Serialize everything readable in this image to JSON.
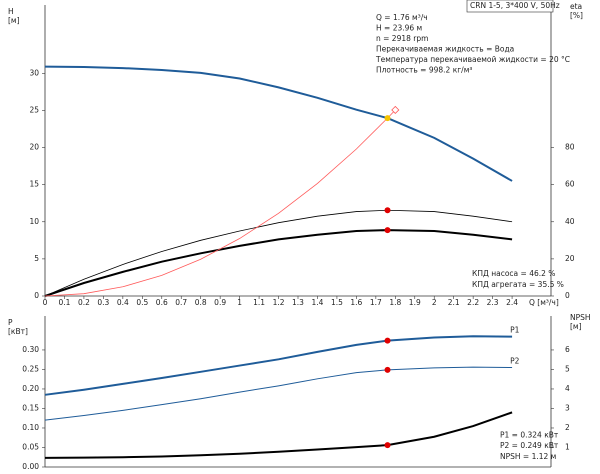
{
  "chart_data": [
    {
      "type": "line",
      "title": "CRN 1-5, 3*400 V, 50Hz",
      "ylabel": "H",
      "yunit": "[м]",
      "y2label": "eta",
      "y2unit": "[%]",
      "xlabel": "Q [м³/ч]",
      "xlim": [
        0,
        2.6
      ],
      "xticks": [
        0,
        0.1,
        0.2,
        0.3,
        0.4,
        0.5,
        0.6,
        0.7,
        0.8,
        0.9,
        1,
        1.1,
        1.2,
        1.3,
        1.4,
        1.5,
        1.6,
        1.7,
        1.8,
        1.9,
        2,
        2.1,
        2.2,
        2.3,
        2.4
      ],
      "ylim": [
        0,
        39.2
      ],
      "yticks": [
        0,
        5,
        10,
        15,
        20,
        25,
        30
      ],
      "y2lim": [
        0,
        156.8
      ],
      "y2ticks": [
        0,
        20,
        40,
        60,
        80
      ],
      "x": [
        0,
        0.2,
        0.4,
        0.6,
        0.8,
        1.0,
        1.2,
        1.4,
        1.6,
        1.76,
        2.0,
        2.2,
        2.4
      ],
      "series": [
        {
          "color": "#1f5c99",
          "width": 2,
          "values": [
            30.9,
            30.85,
            30.7,
            30.45,
            30.05,
            29.3,
            28.1,
            26.7,
            25.1,
            23.96,
            21.3,
            18.5,
            15.5
          ]
        },
        {
          "color": "#000000",
          "width": 0.8,
          "axis": "y2",
          "values": [
            0,
            9,
            17,
            24,
            30,
            35,
            39.5,
            43,
            45.5,
            46.2,
            45.5,
            43,
            40
          ]
        },
        {
          "color": "#000000",
          "width": 2,
          "axis": "y2",
          "values": [
            0,
            7,
            13,
            18.5,
            23,
            27,
            30.5,
            33,
            35,
            35.5,
            35,
            33,
            30.5
          ]
        },
        {
          "color": "#ff5a5a",
          "width": 0.8,
          "x": [
            0,
            0.2,
            0.4,
            0.6,
            0.8,
            1.0,
            1.2,
            1.4,
            1.6,
            1.76,
            1.8
          ],
          "values": [
            0,
            0.31,
            1.24,
            2.78,
            4.95,
            7.74,
            11.14,
            15.16,
            19.8,
            23.96,
            25.06
          ]
        }
      ],
      "points": [
        {
          "x": 1.76,
          "y": 23.96,
          "color": "#f5c400",
          "marker": "circle"
        },
        {
          "x": 1.8,
          "y": 25.06,
          "color": "#ff5a5a",
          "marker": "diamond"
        },
        {
          "x": 1.76,
          "y": 46.2,
          "color": "#e00000",
          "marker": "circle",
          "axis": "y2"
        },
        {
          "x": 1.76,
          "y": 35.5,
          "color": "#e00000",
          "marker": "circle",
          "axis": "y2"
        }
      ],
      "annotations": [
        "Q = 1.76 м³/ч",
        "H = 23.96 м",
        "n = 2918 rpm",
        "Перекачиваемая жидкость = Вода",
        "Температура перекачиваемой жидкости = 20 °C",
        "Плотность = 998.2 кг/м³"
      ],
      "results": [
        "КПД насоса = 46.2 %",
        "КПД агрегата = 35.5 %"
      ]
    },
    {
      "type": "line",
      "ylabel": "P",
      "yunit": "[кВт]",
      "y2label": "NPSH",
      "y2unit": "[м]",
      "xlim": [
        0,
        2.6
      ],
      "ylim": [
        0,
        0.387
      ],
      "yticks": [
        {
          "value": 0,
          "label": "0.00"
        },
        0.05,
        {
          "value": 0.1,
          "label": "0.10"
        },
        0.15,
        {
          "value": 0.2,
          "label": "0.20"
        },
        0.25,
        {
          "value": 0.3,
          "label": "0.30"
        }
      ],
      "y2lim": [
        0,
        7.74
      ],
      "y2ticks": [
        1,
        2,
        3,
        4,
        5,
        6
      ],
      "x": [
        0,
        0.2,
        0.4,
        0.6,
        0.8,
        1.0,
        1.2,
        1.4,
        1.6,
        1.76,
        2.0,
        2.2,
        2.4
      ],
      "series": [
        {
          "name": "P1",
          "color": "#1f5c99",
          "width": 2,
          "values": [
            0.185,
            0.198,
            0.213,
            0.228,
            0.244,
            0.26,
            0.276,
            0.295,
            0.313,
            0.324,
            0.332,
            0.335,
            0.334
          ]
        },
        {
          "name": "P2",
          "color": "#1f5c99",
          "width": 1,
          "values": [
            0.12,
            0.132,
            0.145,
            0.16,
            0.175,
            0.192,
            0.208,
            0.226,
            0.242,
            0.249,
            0.254,
            0.256,
            0.255
          ]
        },
        {
          "color": "#000000",
          "width": 2,
          "axis": "y2",
          "values": [
            0.47,
            0.48,
            0.5,
            0.54,
            0.6,
            0.68,
            0.78,
            0.9,
            1.02,
            1.12,
            1.55,
            2.1,
            2.8
          ]
        }
      ],
      "points": [
        {
          "x": 1.76,
          "y": 0.324,
          "color": "#e00000",
          "marker": "circle"
        },
        {
          "x": 1.76,
          "y": 0.249,
          "color": "#e00000",
          "marker": "circle"
        },
        {
          "x": 1.76,
          "y": 1.12,
          "color": "#e00000",
          "marker": "circle",
          "axis": "y2"
        }
      ],
      "results": [
        "P1 = 0.324 кВт",
        "P2 = 0.249 кВт",
        "NPSH = 1.12 м"
      ]
    }
  ]
}
